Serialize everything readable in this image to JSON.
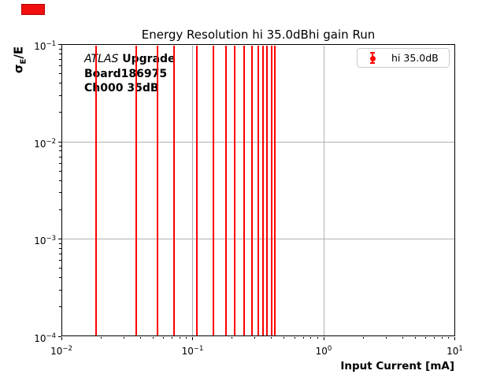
{
  "figure": {
    "title": "Energy Resolution hi 35.0dBhi gain Run",
    "background_color": "#ffffff"
  },
  "annotation": {
    "line1_italic": "ATLAS",
    "line1_bold": " Upgrade",
    "line2": "Board186975",
    "line3": "Ch000 35dB"
  },
  "legend": {
    "label": "hi 35.0dB",
    "marker_color": "#ff0000",
    "position": "upper right"
  },
  "red_marker": {
    "fill": "#f20f0f",
    "border": "#b30000"
  },
  "chart_data": {
    "type": "errorbar",
    "title": "Energy Resolution hi 35.0dBhi gain Run",
    "xlabel": "Input Current [mA]",
    "ylabel": "σE/E",
    "ylabel_parts": {
      "main": "σ",
      "sub": "E",
      "rest": "/E"
    },
    "xscale": "log",
    "yscale": "log",
    "xlim": [
      0.01,
      10
    ],
    "ylim": [
      0.0001,
      0.1
    ],
    "x_tick_exponents": [
      -2,
      -1,
      0,
      1
    ],
    "y_tick_exponents": [
      -1,
      -2,
      -3,
      -4
    ],
    "tick_base": "10",
    "grid": true,
    "grid_color": "#b0b0b0",
    "series": [
      {
        "name": "hi 35.0dB",
        "color": "#ff0000",
        "x_mA": [
          0.0185,
          0.037,
          0.054,
          0.072,
          0.108,
          0.144,
          0.18,
          0.211,
          0.247,
          0.284,
          0.317,
          0.344,
          0.372,
          0.4,
          0.425
        ],
        "error_bars": "vertical bars span the full visible y-range (clipped at axis limits, no visible center markers)"
      }
    ]
  }
}
